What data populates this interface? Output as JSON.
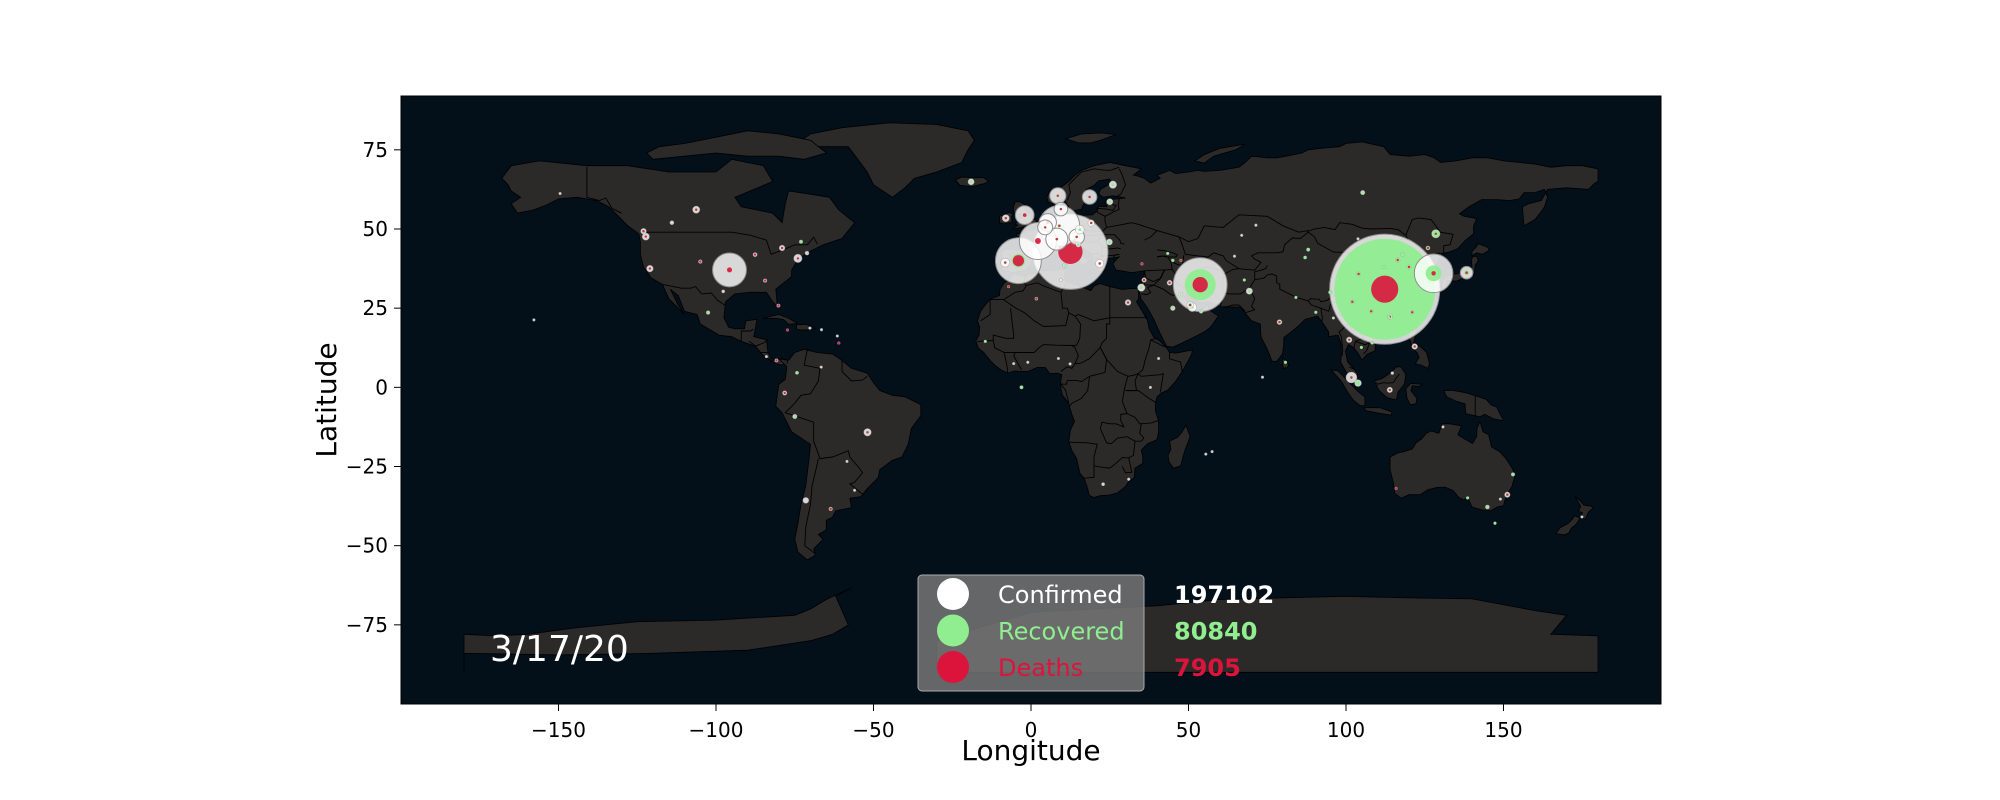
{
  "chart_data": {
    "type": "scatter",
    "xlabel": "Longitude",
    "ylabel": "Latitude",
    "xlim": [
      -200,
      200
    ],
    "ylim": [
      -100,
      92
    ],
    "xticks": [
      -150,
      -100,
      -50,
      0,
      50,
      100,
      150
    ],
    "yticks": [
      75,
      50,
      25,
      0,
      -25,
      -50,
      -75
    ],
    "date": "3/17/20",
    "grid": false,
    "legend_placement": "bottom-center",
    "colors": {
      "ocean": "#030f19",
      "land": "#2b2a29",
      "borders": "#000000",
      "confirmed": "#ffffff",
      "recovered": "#90ee90",
      "deaths": "#dc143c"
    },
    "legend": [
      {
        "label": "Confirmed",
        "value": "197102",
        "color": "#ffffff"
      },
      {
        "label": "Recovered",
        "value": "80840",
        "color": "#90ee90"
      },
      {
        "label": "Deaths",
        "value": "7905",
        "color": "#dc143c"
      }
    ],
    "points": [
      {
        "lon": 112.3,
        "lat": 31.0,
        "confirmed": 67800,
        "recovered": 56900,
        "deaths": 3111
      },
      {
        "lon": 12.5,
        "lat": 42.8,
        "confirmed": 31506,
        "recovered": 2941,
        "deaths": 2503
      },
      {
        "lon": 53.7,
        "lat": 32.4,
        "confirmed": 16169,
        "recovered": 5389,
        "deaths": 988
      },
      {
        "lon": -4.0,
        "lat": 40.0,
        "confirmed": 11748,
        "recovered": 1028,
        "deaths": 533
      },
      {
        "lon": 127.8,
        "lat": 36.0,
        "confirmed": 8320,
        "recovered": 1401,
        "deaths": 81
      },
      {
        "lon": 9.0,
        "lat": 51.0,
        "confirmed": 9257,
        "recovered": 67,
        "deaths": 24
      },
      {
        "lon": 2.2,
        "lat": 46.2,
        "confirmed": 7699,
        "recovered": 12,
        "deaths": 148
      },
      {
        "lon": -95.7,
        "lat": 37.1,
        "confirmed": 6421,
        "recovered": 17,
        "deaths": 108
      },
      {
        "lon": 8.2,
        "lat": 46.8,
        "confirmed": 2700,
        "recovered": 4,
        "deaths": 27
      },
      {
        "lon": -2.0,
        "lat": 54.4,
        "confirmed": 1960,
        "recovered": 53,
        "deaths": 56
      },
      {
        "lon": 5.3,
        "lat": 52.1,
        "confirmed": 1705,
        "recovered": 2,
        "deaths": 43
      },
      {
        "lon": 8.5,
        "lat": 60.5,
        "confirmed": 1463,
        "recovered": 1,
        "deaths": 3
      },
      {
        "lon": 4.5,
        "lat": 50.5,
        "confirmed": 1243,
        "recovered": 1,
        "deaths": 10
      },
      {
        "lon": 14.5,
        "lat": 47.5,
        "confirmed": 1332,
        "recovered": 1,
        "deaths": 3
      },
      {
        "lon": 18.6,
        "lat": 60.1,
        "confirmed": 1190,
        "recovered": 1,
        "deaths": 7
      },
      {
        "lon": 9.5,
        "lat": 56.3,
        "confirmed": 1024,
        "recovered": 1,
        "deaths": 4
      },
      {
        "lon": 138.3,
        "lat": 36.2,
        "confirmed": 878,
        "recovered": 144,
        "deaths": 29
      },
      {
        "lon": 113.9,
        "lat": 22.3,
        "confirmed": 162,
        "recovered": 88,
        "deaths": 4
      },
      {
        "lon": 128.5,
        "lat": 48.5,
        "confirmed": 400,
        "recovered": 300,
        "deaths": 2
      },
      {
        "lon": 101.7,
        "lat": 3.1,
        "confirmed": 673,
        "recovered": 49,
        "deaths": 2
      },
      {
        "lon": 103.8,
        "lat": 1.35,
        "confirmed": 266,
        "recovered": 114,
        "deaths": 0
      },
      {
        "lon": 101.0,
        "lat": 15.0,
        "confirmed": 177,
        "recovered": 41,
        "deaths": 1
      },
      {
        "lon": 121.0,
        "lat": 23.7,
        "confirmed": 77,
        "recovered": 22,
        "deaths": 1
      },
      {
        "lon": 113.5,
        "lat": 22.2,
        "confirmed": 12,
        "recovered": 10,
        "deaths": 0
      },
      {
        "lon": 104.0,
        "lat": 35.8,
        "confirmed": 100,
        "recovered": 90,
        "deaths": 1
      },
      {
        "lon": 120.0,
        "lat": 38.0,
        "confirmed": 120,
        "recovered": 110,
        "deaths": 1
      },
      {
        "lon": 95.0,
        "lat": 30.0,
        "confirmed": 80,
        "recovered": 70,
        "deaths": 0
      },
      {
        "lon": 118.0,
        "lat": 42.0,
        "confirmed": 90,
        "recovered": 80,
        "deaths": 0
      },
      {
        "lon": 116.4,
        "lat": 40.2,
        "confirmed": 120,
        "recovered": 100,
        "deaths": 1
      },
      {
        "lon": 108.0,
        "lat": 24.0,
        "confirmed": 100,
        "recovered": 95,
        "deaths": 1
      },
      {
        "lon": 102.0,
        "lat": 27.0,
        "confirmed": 90,
        "recovered": 80,
        "deaths": 1
      },
      {
        "lon": 126.0,
        "lat": 44.0,
        "confirmed": 90,
        "recovered": 80,
        "deaths": 1
      },
      {
        "lon": 112.0,
        "lat": 38.0,
        "confirmed": 80,
        "recovered": 70,
        "deaths": 0
      },
      {
        "lon": 88.0,
        "lat": 43.5,
        "confirmed": 70,
        "recovered": 60,
        "deaths": 0
      },
      {
        "lon": 87.0,
        "lat": 41.0,
        "confirmed": 60,
        "recovered": 50,
        "deaths": 0
      },
      {
        "lon": -3.0,
        "lat": 0.0,
        "confirmed": 70,
        "recovered": 55,
        "deaths": 0
      },
      {
        "lon": 45.0,
        "lat": 25.0,
        "confirmed": 133,
        "recovered": 6,
        "deaths": 0
      },
      {
        "lon": 51.2,
        "lat": 25.3,
        "confirmed": 439,
        "recovered": 4,
        "deaths": 0
      },
      {
        "lon": 50.5,
        "lat": 26.0,
        "confirmed": 228,
        "recovered": 80,
        "deaths": 1
      },
      {
        "lon": 47.5,
        "lat": 29.3,
        "confirmed": 130,
        "recovered": 10,
        "deaths": 0
      },
      {
        "lon": 54.0,
        "lat": 24.0,
        "confirmed": 98,
        "recovered": 23,
        "deaths": 0
      },
      {
        "lon": 35.0,
        "lat": 31.5,
        "confirmed": 324,
        "recovered": 11,
        "deaths": 0
      },
      {
        "lon": 35.9,
        "lat": 33.9,
        "confirmed": 120,
        "recovered": 1,
        "deaths": 3
      },
      {
        "lon": 44.0,
        "lat": 33.0,
        "confirmed": 154,
        "recovered": 32,
        "deaths": 11
      },
      {
        "lon": 78.9,
        "lat": 20.6,
        "confirmed": 142,
        "recovered": 14,
        "deaths": 3
      },
      {
        "lon": 69.3,
        "lat": 30.4,
        "confirmed": 237,
        "recovered": 2,
        "deaths": 0
      },
      {
        "lon": 35.2,
        "lat": 39.0,
        "confirmed": 47,
        "recovered": 0,
        "deaths": 1
      },
      {
        "lon": 30.8,
        "lat": 26.8,
        "confirmed": 196,
        "recovered": 32,
        "deaths": 6
      },
      {
        "lon": 21.8,
        "lat": 39.1,
        "confirmed": 387,
        "recovered": 8,
        "deaths": 5
      },
      {
        "lon": 25.0,
        "lat": 58.6,
        "confirmed": 225,
        "recovered": 1,
        "deaths": 0
      },
      {
        "lon": 26.0,
        "lat": 64.0,
        "confirmed": 321,
        "recovered": 10,
        "deaths": 0
      },
      {
        "lon": -8.2,
        "lat": 39.4,
        "confirmed": 448,
        "recovered": 3,
        "deaths": 1
      },
      {
        "lon": 19.1,
        "lat": 51.9,
        "confirmed": 238,
        "recovered": 13,
        "deaths": 5
      },
      {
        "lon": 15.5,
        "lat": 49.8,
        "confirmed": 434,
        "recovered": 1,
        "deaths": 0
      },
      {
        "lon": -19.0,
        "lat": 64.9,
        "confirmed": 220,
        "recovered": 5,
        "deaths": 0
      },
      {
        "lon": -8.0,
        "lat": 53.4,
        "confirmed": 292,
        "recovered": 5,
        "deaths": 2
      },
      {
        "lon": 10.7,
        "lat": 38.5,
        "confirmed": 90,
        "recovered": 2,
        "deaths": 0
      },
      {
        "lon": 15.0,
        "lat": 45.1,
        "confirmed": 150,
        "recovered": 1,
        "deaths": 0
      },
      {
        "lon": 24.9,
        "lat": 45.9,
        "confirmed": 217,
        "recovered": 19,
        "deaths": 0
      },
      {
        "lon": 105.3,
        "lat": 61.5,
        "confirmed": 114,
        "recovered": 5,
        "deaths": 0
      },
      {
        "lon": 66.9,
        "lat": 48.0,
        "confirmed": 33,
        "recovered": 0,
        "deaths": 0
      },
      {
        "lon": -106.3,
        "lat": 56.1,
        "confirmed": 300,
        "recovered": 9,
        "deaths": 1
      },
      {
        "lon": -79.0,
        "lat": 44.0,
        "confirmed": 185,
        "recovered": 5,
        "deaths": 1
      },
      {
        "lon": -73.0,
        "lat": 46.0,
        "confirmed": 74,
        "recovered": 1,
        "deaths": 0
      },
      {
        "lon": -123.0,
        "lat": 49.3,
        "confirmed": 186,
        "recovered": 4,
        "deaths": 7
      },
      {
        "lon": -114.0,
        "lat": 52.0,
        "confirmed": 97,
        "recovered": 0,
        "deaths": 0
      },
      {
        "lon": -102.5,
        "lat": 23.6,
        "confirmed": 82,
        "recovered": 4,
        "deaths": 0
      },
      {
        "lon": -51.9,
        "lat": -14.2,
        "confirmed": 321,
        "recovered": 2,
        "deaths": 1
      },
      {
        "lon": -71.5,
        "lat": -35.7,
        "confirmed": 201,
        "recovered": 0,
        "deaths": 0
      },
      {
        "lon": -63.6,
        "lat": -38.4,
        "confirmed": 79,
        "recovered": 3,
        "deaths": 2
      },
      {
        "lon": -75.0,
        "lat": -9.2,
        "confirmed": 117,
        "recovered": 1,
        "deaths": 0
      },
      {
        "lon": -74.3,
        "lat": 4.6,
        "confirmed": 65,
        "recovered": 1,
        "deaths": 0
      },
      {
        "lon": -78.2,
        "lat": -1.8,
        "confirmed": 111,
        "recovered": 0,
        "deaths": 2
      },
      {
        "lon": -66.6,
        "lat": 6.4,
        "confirmed": 33,
        "recovered": 0,
        "deaths": 0
      },
      {
        "lon": -80.8,
        "lat": 8.5,
        "confirmed": 69,
        "recovered": 0,
        "deaths": 1
      },
      {
        "lon": -84.0,
        "lat": 9.7,
        "confirmed": 41,
        "recovered": 0,
        "deaths": 0
      },
      {
        "lon": -70.2,
        "lat": 18.7,
        "confirmed": 21,
        "recovered": 0,
        "deaths": 0
      },
      {
        "lon": -66.5,
        "lat": 18.2,
        "confirmed": 5,
        "recovered": 0,
        "deaths": 0
      },
      {
        "lon": -61.0,
        "lat": 14.0,
        "confirmed": 15,
        "recovered": 0,
        "deaths": 1
      },
      {
        "lon": -61.5,
        "lat": 16.2,
        "confirmed": 18,
        "recovered": 0,
        "deaths": 0
      },
      {
        "lon": -77.3,
        "lat": 18.1,
        "confirmed": 12,
        "recovered": 0,
        "deaths": 1
      },
      {
        "lon": -56.0,
        "lat": -32.5,
        "confirmed": 29,
        "recovered": 0,
        "deaths": 0
      },
      {
        "lon": -58.4,
        "lat": -23.4,
        "confirmed": 11,
        "recovered": 0,
        "deaths": 0
      },
      {
        "lon": 22.9,
        "lat": -30.6,
        "confirmed": 62,
        "recovered": 0,
        "deaths": 0
      },
      {
        "lon": 31.0,
        "lat": -29.0,
        "confirmed": 20,
        "recovered": 0,
        "deaths": 0
      },
      {
        "lon": 37.9,
        "lat": -0.02,
        "confirmed": 3,
        "recovered": 0,
        "deaths": 0
      },
      {
        "lon": 8.7,
        "lat": 9.1,
        "confirmed": 3,
        "recovered": 0,
        "deaths": 0
      },
      {
        "lon": 1.7,
        "lat": 28.0,
        "confirmed": 60,
        "recovered": 12,
        "deaths": 4
      },
      {
        "lon": -7.1,
        "lat": 31.8,
        "confirmed": 38,
        "recovered": 1,
        "deaths": 1
      },
      {
        "lon": 9.5,
        "lat": 33.9,
        "confirmed": 24,
        "recovered": 0,
        "deaths": 0
      },
      {
        "lon": -14.5,
        "lat": 14.5,
        "confirmed": 27,
        "recovered": 2,
        "deaths": 0
      },
      {
        "lon": -5.5,
        "lat": 7.5,
        "confirmed": 5,
        "recovered": 0,
        "deaths": 0
      },
      {
        "lon": -1.0,
        "lat": 7.9,
        "confirmed": 7,
        "recovered": 0,
        "deaths": 0
      },
      {
        "lon": 12.4,
        "lat": 7.4,
        "confirmed": 10,
        "recovered": 0,
        "deaths": 0
      },
      {
        "lon": 40.5,
        "lat": 9.1,
        "confirmed": 5,
        "recovered": 0,
        "deaths": 0
      },
      {
        "lon": 55.5,
        "lat": -21.1,
        "confirmed": 12,
        "recovered": 0,
        "deaths": 0
      },
      {
        "lon": 57.5,
        "lat": -20.3,
        "confirmed": 3,
        "recovered": 0,
        "deaths": 0
      },
      {
        "lon": 73.5,
        "lat": 3.2,
        "confirmed": 13,
        "recovered": 0,
        "deaths": 0
      },
      {
        "lon": 80.8,
        "lat": 7.9,
        "confirmed": 28,
        "recovered": 1,
        "deaths": 0
      },
      {
        "lon": 90.4,
        "lat": 23.7,
        "confirmed": 8,
        "recovered": 3,
        "deaths": 0
      },
      {
        "lon": 84.1,
        "lat": 28.4,
        "confirmed": 1,
        "recovered": 1,
        "deaths": 0
      },
      {
        "lon": 96.0,
        "lat": 21.9,
        "confirmed": 1,
        "recovered": 0,
        "deaths": 0
      },
      {
        "lon": 108.3,
        "lat": 14.1,
        "confirmed": 61,
        "recovered": 16,
        "deaths": 0
      },
      {
        "lon": 104.9,
        "lat": 12.6,
        "confirmed": 33,
        "recovered": 1,
        "deaths": 0
      },
      {
        "lon": 121.8,
        "lat": 12.9,
        "confirmed": 187,
        "recovered": 5,
        "deaths": 12
      },
      {
        "lon": 113.9,
        "lat": -0.8,
        "confirmed": 172,
        "recovered": 9,
        "deaths": 5
      },
      {
        "lon": 114.7,
        "lat": 4.5,
        "confirmed": 54,
        "recovered": 0,
        "deaths": 0
      },
      {
        "lon": 151.2,
        "lat": -33.9,
        "confirmed": 171,
        "recovered": 4,
        "deaths": 5
      },
      {
        "lon": 144.9,
        "lat": -37.8,
        "confirmed": 94,
        "recovered": 8,
        "deaths": 0
      },
      {
        "lon": 153.0,
        "lat": -27.5,
        "confirmed": 78,
        "recovered": 8,
        "deaths": 0
      },
      {
        "lon": 115.9,
        "lat": -31.9,
        "confirmed": 31,
        "recovered": 0,
        "deaths": 1
      },
      {
        "lon": 138.6,
        "lat": -34.9,
        "confirmed": 29,
        "recovered": 3,
        "deaths": 0
      },
      {
        "lon": 147.3,
        "lat": -42.9,
        "confirmed": 10,
        "recovered": 3,
        "deaths": 0
      },
      {
        "lon": 174.9,
        "lat": -40.9,
        "confirmed": 12,
        "recovered": 0,
        "deaths": 0
      },
      {
        "lon": 149.0,
        "lat": -35.3,
        "confirmed": 3,
        "recovered": 0,
        "deaths": 0
      },
      {
        "lon": 130.8,
        "lat": -12.5,
        "confirmed": 1,
        "recovered": 0,
        "deaths": 0
      },
      {
        "lon": 71.4,
        "lat": 51.2,
        "confirmed": 33,
        "recovered": 0,
        "deaths": 0
      },
      {
        "lon": 64.6,
        "lat": 41.4,
        "confirmed": 10,
        "recovered": 0,
        "deaths": 0
      },
      {
        "lon": 43.4,
        "lat": 42.3,
        "confirmed": 34,
        "recovered": 1,
        "deaths": 0
      },
      {
        "lon": 45.0,
        "lat": 40.1,
        "confirmed": 52,
        "recovered": 1,
        "deaths": 0
      },
      {
        "lon": 47.6,
        "lat": 40.1,
        "confirmed": 28,
        "recovered": 6,
        "deaths": 1
      },
      {
        "lon": 67.7,
        "lat": 33.9,
        "confirmed": 22,
        "recovered": 1,
        "deaths": 0
      },
      {
        "lon": 103.8,
        "lat": 46.9,
        "confirmed": 6,
        "recovered": 0,
        "deaths": 0
      },
      {
        "lon": -149.5,
        "lat": 61.2,
        "confirmed": 3,
        "recovered": 0,
        "deaths": 0
      },
      {
        "lon": -121.0,
        "lat": 37.5,
        "confirmed": 250,
        "recovered": 0,
        "deaths": 5
      },
      {
        "lon": -122.3,
        "lat": 47.6,
        "confirmed": 300,
        "recovered": 0,
        "deaths": 8
      },
      {
        "lon": -74.0,
        "lat": 40.7,
        "confirmed": 400,
        "recovered": 0,
        "deaths": 3
      },
      {
        "lon": -87.6,
        "lat": 41.9,
        "confirmed": 100,
        "recovered": 0,
        "deaths": 1
      },
      {
        "lon": -84.4,
        "lat": 33.7,
        "confirmed": 80,
        "recovered": 0,
        "deaths": 1
      },
      {
        "lon": -80.2,
        "lat": 25.8,
        "confirmed": 70,
        "recovered": 0,
        "deaths": 1
      },
      {
        "lon": -97.7,
        "lat": 30.3,
        "confirmed": 60,
        "recovered": 0,
        "deaths": 0
      },
      {
        "lon": -105.0,
        "lat": 39.7,
        "confirmed": 80,
        "recovered": 0,
        "deaths": 1
      },
      {
        "lon": -71.1,
        "lat": 42.4,
        "confirmed": 90,
        "recovered": 0,
        "deaths": 0
      },
      {
        "lon": -157.8,
        "lat": 21.3,
        "confirmed": 10,
        "recovered": 0,
        "deaths": 0
      }
    ]
  }
}
